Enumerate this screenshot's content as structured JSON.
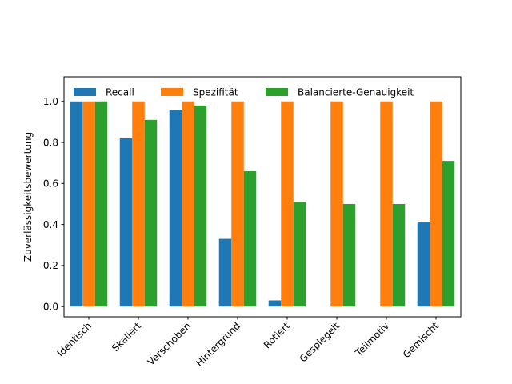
{
  "chart_data": {
    "type": "bar",
    "title": "",
    "xlabel": "",
    "ylabel": "Zuverlässigkeitsbewertung",
    "ylim": [
      -0.05,
      1.12
    ],
    "yticks": [
      0.0,
      0.2,
      0.4,
      0.6,
      0.8,
      1.0
    ],
    "ytick_labels": [
      "0.0",
      "0.2",
      "0.4",
      "0.6",
      "0.8",
      "1.0"
    ],
    "categories": [
      "Identisch",
      "Skaliert",
      "Verschoben",
      "Hintergrund",
      "Rotiert",
      "Gespiegelt",
      "Teilmotiv",
      "Gemischt"
    ],
    "series": [
      {
        "name": "Recall",
        "color": "#1f77b4",
        "values": [
          1.0,
          0.82,
          0.96,
          0.33,
          0.03,
          0.0,
          0.0,
          0.41
        ]
      },
      {
        "name": "Spezifität",
        "color": "#ff7f0e",
        "values": [
          1.0,
          1.0,
          1.0,
          1.0,
          1.0,
          1.0,
          1.0,
          1.0
        ]
      },
      {
        "name": "Balancierte-Genauigkeit",
        "color": "#2ca02c",
        "values": [
          1.0,
          0.91,
          0.98,
          0.66,
          0.51,
          0.5,
          0.5,
          0.71
        ]
      }
    ],
    "legend_position": "top",
    "grid": false,
    "xtick_rotation": 45
  }
}
